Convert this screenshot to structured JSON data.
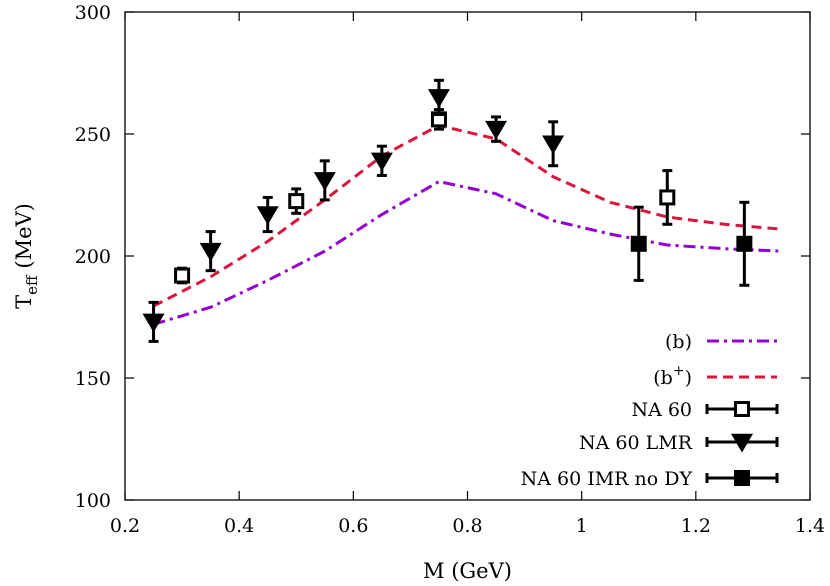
{
  "chart_data": {
    "type": "scatter",
    "xlabel": "M (GeV)",
    "ylabel": {
      "main": "T",
      "sub": "eff",
      "rest": " (MeV)"
    },
    "xlim": [
      0.2,
      1.4
    ],
    "ylim": [
      100,
      300
    ],
    "xticks": [
      0.2,
      0.4,
      0.6,
      0.8,
      1,
      1.2,
      1.4
    ],
    "xtick_labels": [
      "0.2",
      "0.4",
      "0.6",
      "0.8",
      "1",
      "1.2",
      "1.4"
    ],
    "yticks": [
      100,
      150,
      200,
      250,
      300
    ],
    "ytick_labels": [
      "100",
      "150",
      "200",
      "250",
      "300"
    ],
    "grid": false,
    "legend_position": "bottom-right",
    "series": [
      {
        "name": "(b)",
        "legend": {
          "main": "(b)",
          "sup": ""
        },
        "kind": "line",
        "style": "dash-dot",
        "color": "#9400d3",
        "x": [
          0.25,
          0.35,
          0.45,
          0.55,
          0.65,
          0.75,
          0.85,
          0.95,
          1.05,
          1.15,
          1.25,
          1.35
        ],
        "y": [
          172,
          179,
          190,
          202,
          217,
          230.5,
          225.5,
          214.5,
          209,
          204.5,
          203,
          202
        ]
      },
      {
        "name": "(b+)",
        "legend": {
          "main": "(b",
          "sup": "+",
          "end": ")"
        },
        "kind": "line",
        "style": "dashed",
        "color": "#dc143c",
        "x": [
          0.25,
          0.35,
          0.45,
          0.55,
          0.65,
          0.75,
          0.85,
          0.95,
          1.05,
          1.15,
          1.25,
          1.35
        ],
        "y": [
          179.5,
          191.5,
          206,
          223,
          241,
          253.5,
          248,
          232.5,
          222,
          216,
          213,
          211
        ]
      },
      {
        "name": "NA 60",
        "legend": {
          "main": "NA 60",
          "sup": ""
        },
        "kind": "points",
        "marker": "open-square",
        "color": "#000000",
        "x": [
          0.3,
          0.5,
          0.75,
          1.15
        ],
        "y": [
          192,
          222.5,
          256,
          224
        ],
        "yerr_low": [
          3,
          5,
          4,
          11
        ],
        "yerr_high": [
          3,
          5,
          4,
          11
        ]
      },
      {
        "name": "NA 60 LMR",
        "legend": {
          "main": "NA 60 LMR",
          "sup": ""
        },
        "kind": "points",
        "marker": "filled-triangle-down",
        "color": "#000000",
        "x": [
          0.25,
          0.35,
          0.45,
          0.55,
          0.65,
          0.75,
          0.85,
          0.95
        ],
        "y": [
          173,
          202,
          217,
          231,
          239,
          265,
          252,
          246
        ],
        "yerr_low": [
          8,
          8,
          7,
          8,
          6,
          7,
          5,
          9
        ],
        "yerr_high": [
          8,
          8,
          7,
          8,
          6,
          7,
          5,
          9
        ]
      },
      {
        "name": "NA 60 IMR no DY",
        "legend": {
          "main": "NA 60 IMR no DY",
          "sup": ""
        },
        "kind": "points",
        "marker": "filled-square",
        "color": "#000000",
        "x": [
          1.1,
          1.285
        ],
        "y": [
          205,
          205
        ],
        "yerr_low": [
          15,
          17
        ],
        "yerr_high": [
          15,
          17
        ]
      }
    ]
  }
}
